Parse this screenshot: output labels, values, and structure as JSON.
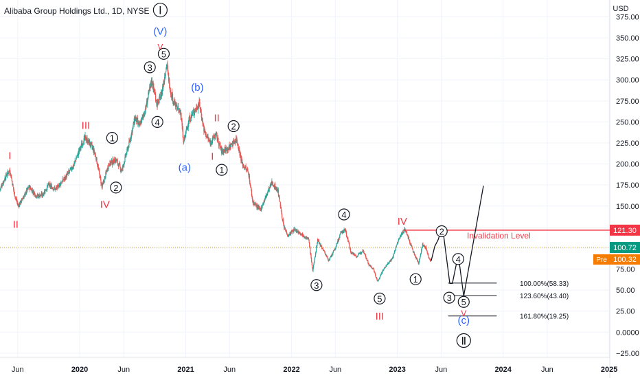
{
  "header": {
    "symbol_title": "Alibaba Group Holdings Ltd., 1D, NYSE"
  },
  "chart_data": {
    "type": "candlestick",
    "currency": "USD",
    "ylim": [
      -30,
      395
    ],
    "y_ticks": [
      -25,
      0,
      25,
      50,
      75,
      100,
      125,
      150,
      175,
      200,
      225,
      250,
      275,
      300,
      325,
      350,
      375
    ],
    "y_tick_labels": [
      "−25.00",
      "0.0000",
      "25.00",
      "50.00",
      "75.00",
      "100.00",
      "125.00",
      "150.00",
      "175.00",
      "200.00",
      "225.00",
      "250.00",
      "275.00",
      "300.00",
      "325.00",
      "350.00",
      "375.00"
    ],
    "x_range": [
      "2019-04-01",
      "2025-01-03"
    ],
    "x_ticks": [
      {
        "date": "2019-06-01",
        "label": "Jun",
        "bold": false
      },
      {
        "date": "2020-01-01",
        "label": "2020",
        "bold": true
      },
      {
        "date": "2020-06-01",
        "label": "Jun",
        "bold": false
      },
      {
        "date": "2021-01-01",
        "label": "2021",
        "bold": true
      },
      {
        "date": "2021-06-01",
        "label": "Jun",
        "bold": false
      },
      {
        "date": "2022-01-01",
        "label": "2022",
        "bold": true
      },
      {
        "date": "2022-06-01",
        "label": "Jun",
        "bold": false
      },
      {
        "date": "2023-01-01",
        "label": "2023",
        "bold": true
      },
      {
        "date": "2023-06-01",
        "label": "Jun",
        "bold": false
      },
      {
        "date": "2024-01-01",
        "label": "2024",
        "bold": true
      },
      {
        "date": "2024-06-01",
        "label": "Jun",
        "bold": false
      },
      {
        "date": "2025-01-01",
        "label": "2025",
        "bold": true
      }
    ],
    "price_path": [
      [
        "2019-04-01",
        170
      ],
      [
        "2019-04-20",
        185
      ],
      [
        "2019-05-05",
        193
      ],
      [
        "2019-05-20",
        165
      ],
      [
        "2019-06-03",
        150
      ],
      [
        "2019-06-20",
        160
      ],
      [
        "2019-07-10",
        173
      ],
      [
        "2019-08-05",
        162
      ],
      [
        "2019-08-25",
        163
      ],
      [
        "2019-09-15",
        175
      ],
      [
        "2019-10-10",
        170
      ],
      [
        "2019-11-15",
        185
      ],
      [
        "2019-12-10",
        198
      ],
      [
        "2020-01-10",
        225
      ],
      [
        "2020-01-20",
        231
      ],
      [
        "2020-02-10",
        222
      ],
      [
        "2020-02-25",
        210
      ],
      [
        "2020-03-18",
        172
      ],
      [
        "2020-04-10",
        200
      ],
      [
        "2020-05-05",
        205
      ],
      [
        "2020-05-25",
        192
      ],
      [
        "2020-06-20",
        225
      ],
      [
        "2020-07-10",
        255
      ],
      [
        "2020-07-25",
        245
      ],
      [
        "2020-08-15",
        265
      ],
      [
        "2020-09-05",
        300
      ],
      [
        "2020-09-25",
        270
      ],
      [
        "2020-10-10",
        285
      ],
      [
        "2020-10-27",
        318
      ],
      [
        "2020-11-10",
        285
      ],
      [
        "2020-11-25",
        270
      ],
      [
        "2020-12-15",
        260
      ],
      [
        "2020-12-24",
        225
      ],
      [
        "2021-01-10",
        250
      ],
      [
        "2021-01-25",
        260
      ],
      [
        "2021-02-17",
        272
      ],
      [
        "2021-03-05",
        240
      ],
      [
        "2021-03-25",
        225
      ],
      [
        "2021-04-15",
        235
      ],
      [
        "2021-05-05",
        215
      ],
      [
        "2021-06-01",
        220
      ],
      [
        "2021-06-25",
        230
      ],
      [
        "2021-07-15",
        200
      ],
      [
        "2021-08-05",
        190
      ],
      [
        "2021-08-20",
        155
      ],
      [
        "2021-09-15",
        145
      ],
      [
        "2021-10-05",
        162
      ],
      [
        "2021-10-25",
        178
      ],
      [
        "2021-11-15",
        168
      ],
      [
        "2021-12-05",
        125
      ],
      [
        "2021-12-20",
        115
      ],
      [
        "2022-01-10",
        122
      ],
      [
        "2022-02-01",
        118
      ],
      [
        "2022-03-01",
        110
      ],
      [
        "2022-03-15",
        73
      ],
      [
        "2022-04-01",
        110
      ],
      [
        "2022-04-20",
        98
      ],
      [
        "2022-05-10",
        85
      ],
      [
        "2022-06-01",
        100
      ],
      [
        "2022-06-20",
        118
      ],
      [
        "2022-07-05",
        122
      ],
      [
        "2022-07-25",
        95
      ],
      [
        "2022-08-15",
        90
      ],
      [
        "2022-09-05",
        98
      ],
      [
        "2022-09-25",
        80
      ],
      [
        "2022-10-10",
        75
      ],
      [
        "2022-10-25",
        60
      ],
      [
        "2022-11-10",
        72
      ],
      [
        "2022-11-25",
        80
      ],
      [
        "2022-12-15",
        88
      ],
      [
        "2023-01-05",
        110
      ],
      [
        "2023-01-27",
        123
      ],
      [
        "2023-02-10",
        110
      ],
      [
        "2023-03-01",
        92
      ],
      [
        "2023-03-15",
        82
      ],
      [
        "2023-03-29",
        104
      ],
      [
        "2023-04-10",
        100
      ],
      [
        "2023-04-20",
        88
      ],
      [
        "2023-04-28",
        85
      ]
    ],
    "projection_path": [
      [
        "2023-04-28",
        85
      ],
      [
        "2023-05-10",
        102
      ],
      [
        "2023-05-22",
        110
      ],
      [
        "2023-06-01",
        121
      ],
      [
        "2023-06-10",
        114
      ],
      [
        "2023-07-01",
        58
      ],
      [
        "2023-07-10",
        58
      ],
      [
        "2023-07-30",
        92
      ],
      [
        "2023-08-18",
        43
      ],
      [
        "2023-10-25",
        174
      ]
    ],
    "horizontal_levels": [
      {
        "value": 121.3,
        "label": "Invalidation Level",
        "color": "#f23645",
        "from": "2023-01-20",
        "to": "2025-01-03",
        "badge": "121.30"
      },
      {
        "value": 58.33,
        "label": "100.00%(58.33)",
        "color": "#131722",
        "from": "2023-06-25",
        "to": "2023-12-10"
      },
      {
        "value": 43.4,
        "label": "123.60%(43.40)",
        "color": "#131722",
        "from": "2023-06-25",
        "to": "2023-12-10"
      },
      {
        "value": 19.25,
        "label": "161.80%(19.25)",
        "color": "#131722",
        "from": "2023-06-25",
        "to": "2023-12-10"
      }
    ],
    "current_price": {
      "value": 100.72,
      "label": "100.72",
      "color": "#089981"
    },
    "pre_market": {
      "tag": "Pre",
      "value": 100.32,
      "label": "100.32",
      "color": "#f57c00"
    },
    "wave_labels": [
      {
        "text": "Ⅰ",
        "date": "2020-10-05",
        "y": 383,
        "style": "circle-big",
        "color": "#131722"
      },
      {
        "text": "(V)",
        "date": "2020-10-05",
        "y": 358,
        "style": "plain",
        "color": "#2962ff"
      },
      {
        "text": "V",
        "date": "2020-10-05",
        "y": 340,
        "style": "plain-small",
        "color": "#f23645"
      },
      {
        "text": "5",
        "date": "2020-10-17",
        "y": 331,
        "style": "circle",
        "color": "#131722"
      },
      {
        "text": "3",
        "date": "2020-08-30",
        "y": 315,
        "style": "circle",
        "color": "#131722"
      },
      {
        "text": "4",
        "date": "2020-09-25",
        "y": 250,
        "style": "circle",
        "color": "#131722"
      },
      {
        "text": "(b)",
        "date": "2021-02-10",
        "y": 291,
        "style": "plain",
        "color": "#2962ff"
      },
      {
        "text": "(a)",
        "date": "2020-12-28",
        "y": 196,
        "style": "plain",
        "color": "#2962ff"
      },
      {
        "text": "III",
        "date": "2020-01-22",
        "y": 246,
        "style": "plain",
        "color": "#f23645"
      },
      {
        "text": "1",
        "date": "2020-04-22",
        "y": 231,
        "style": "circle",
        "color": "#131722"
      },
      {
        "text": "2",
        "date": "2020-05-05",
        "y": 172,
        "style": "circle",
        "color": "#131722"
      },
      {
        "text": "IV",
        "date": "2020-03-28",
        "y": 152,
        "style": "plain",
        "color": "#f23645"
      },
      {
        "text": "I",
        "date": "2019-05-05",
        "y": 210,
        "style": "plain",
        "color": "#f23645"
      },
      {
        "text": "II",
        "date": "2019-05-25",
        "y": 128,
        "style": "plain",
        "color": "#f23645"
      },
      {
        "text": "II",
        "date": "2021-04-18",
        "y": 255,
        "style": "plain",
        "color": "#f23645"
      },
      {
        "text": "I",
        "date": "2021-04-03",
        "y": 209,
        "style": "plain",
        "color": "#f23645"
      },
      {
        "text": "2",
        "date": "2021-06-15",
        "y": 245,
        "style": "circle",
        "color": "#131722"
      },
      {
        "text": "1",
        "date": "2021-05-05",
        "y": 193,
        "style": "circle",
        "color": "#131722"
      },
      {
        "text": "4",
        "date": "2022-07-01",
        "y": 140,
        "style": "circle",
        "color": "#131722"
      },
      {
        "text": "3",
        "date": "2022-03-28",
        "y": 56,
        "style": "circle",
        "color": "#131722"
      },
      {
        "text": "5",
        "date": "2022-11-01",
        "y": 40,
        "style": "circle",
        "color": "#131722"
      },
      {
        "text": "III",
        "date": "2022-11-01",
        "y": 19,
        "style": "plain",
        "color": "#f23645"
      },
      {
        "text": "IV",
        "date": "2023-01-18",
        "y": 132,
        "style": "plain",
        "color": "#f23645"
      },
      {
        "text": "1",
        "date": "2023-03-05",
        "y": 63,
        "style": "circle",
        "color": "#131722"
      },
      {
        "text": "2",
        "date": "2023-06-03",
        "y": 120,
        "style": "circle",
        "color": "#131722"
      },
      {
        "text": "4",
        "date": "2023-07-30",
        "y": 87,
        "style": "circle",
        "color": "#131722"
      },
      {
        "text": "3",
        "date": "2023-06-29",
        "y": 41,
        "style": "circle",
        "color": "#131722"
      },
      {
        "text": "5",
        "date": "2023-08-18",
        "y": 36,
        "style": "circle",
        "color": "#131722"
      },
      {
        "text": "V",
        "date": "2023-08-18",
        "y": 23,
        "style": "plain-small",
        "color": "#f23645"
      },
      {
        "text": "(c)",
        "date": "2023-08-18",
        "y": 14,
        "style": "plain",
        "color": "#2962ff"
      },
      {
        "text": "Ⅱ",
        "date": "2023-08-18",
        "y": -10,
        "style": "circle-big",
        "color": "#131722"
      }
    ],
    "colors": {
      "up": "#26a69a",
      "down": "#ef5350",
      "wave_path": "#131722",
      "grid": "#f0f3fa",
      "axis_text": "#131722"
    }
  }
}
